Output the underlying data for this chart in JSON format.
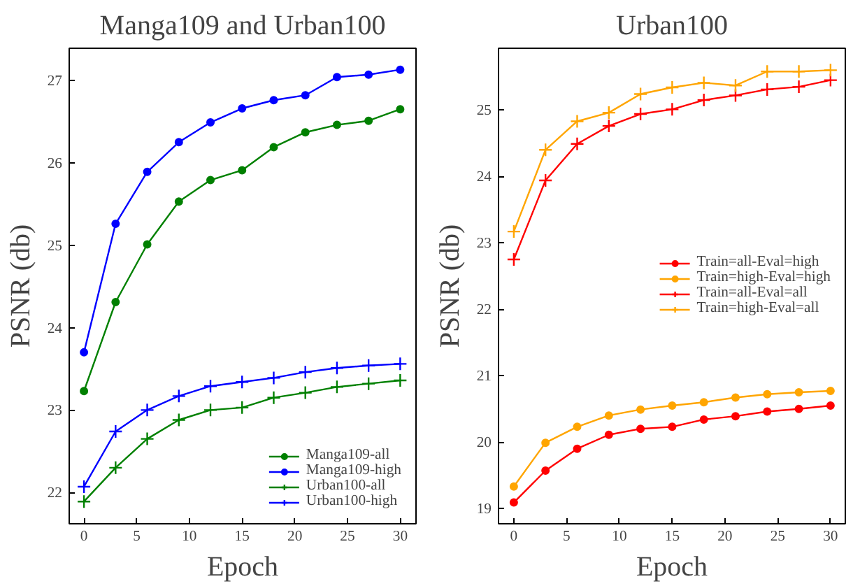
{
  "chart_data": [
    {
      "type": "line",
      "title": "Manga109 and Urban100",
      "xlabel": "Epoch",
      "ylabel": "PSNR (db)",
      "x": [
        0,
        3,
        6,
        9,
        12,
        15,
        18,
        21,
        24,
        27,
        30
      ],
      "xlim": [
        -1.4,
        31.5
      ],
      "ylim": [
        21.62,
        27.39
      ],
      "xticks": [
        0,
        5,
        10,
        15,
        20,
        25,
        30
      ],
      "yticks": [
        22,
        23,
        24,
        25,
        26,
        27
      ],
      "grid": false,
      "legend": "bottom right",
      "line_style": "solid",
      "series": [
        {
          "name": "Manga109-all",
          "color": "#008000",
          "marker": "circle",
          "values": [
            23.23,
            24.31,
            25.01,
            25.53,
            25.79,
            25.91,
            26.19,
            26.37,
            26.46,
            26.51,
            26.65
          ]
        },
        {
          "name": "Manga109-high",
          "color": "#0000ff",
          "marker": "circle",
          "values": [
            23.7,
            25.26,
            25.89,
            26.25,
            26.49,
            26.66,
            26.76,
            26.82,
            27.04,
            27.07,
            27.13
          ]
        },
        {
          "name": "Urban100-all",
          "color": "#008000",
          "marker": "cross",
          "values": [
            21.89,
            22.3,
            22.65,
            22.88,
            23.0,
            23.03,
            23.15,
            23.21,
            23.28,
            23.32,
            23.36
          ]
        },
        {
          "name": "Urban100-high",
          "color": "#0000ff",
          "marker": "cross",
          "values": [
            22.07,
            22.74,
            23.0,
            23.17,
            23.29,
            23.34,
            23.39,
            23.46,
            23.51,
            23.54,
            23.56
          ]
        }
      ]
    },
    {
      "type": "line",
      "title": "Urban100",
      "xlabel": "Epoch",
      "ylabel": "PSNR (db)",
      "x": [
        0,
        3,
        6,
        9,
        12,
        15,
        18,
        21,
        24,
        27,
        30
      ],
      "xlim": [
        -1.45,
        31.4
      ],
      "ylim": [
        18.77,
        25.93
      ],
      "xticks": [
        0,
        5,
        10,
        15,
        20,
        25,
        30
      ],
      "yticks": [
        19,
        20,
        21,
        22,
        23,
        24,
        25
      ],
      "grid": false,
      "legend": "right",
      "line_style": "solid",
      "series": [
        {
          "name": "Train=all-Eval=high",
          "color": "#ff0000",
          "marker": "circle",
          "values": [
            19.09,
            19.57,
            19.9,
            20.11,
            20.2,
            20.23,
            20.34,
            20.39,
            20.46,
            20.5,
            20.55
          ]
        },
        {
          "name": "Train=high-Eval=high",
          "color": "#ffa500",
          "marker": "circle",
          "values": [
            19.33,
            19.99,
            20.23,
            20.4,
            20.49,
            20.55,
            20.6,
            20.67,
            20.72,
            20.75,
            20.77
          ]
        },
        {
          "name": "Train=all-Eval=all",
          "color": "#ff0000",
          "marker": "cross",
          "values": [
            22.75,
            23.94,
            24.49,
            24.76,
            24.94,
            25.01,
            25.15,
            25.22,
            25.31,
            25.35,
            25.45
          ]
        },
        {
          "name": "Train=high-Eval=all",
          "color": "#ffa500",
          "marker": "cross",
          "values": [
            23.17,
            24.4,
            24.83,
            24.96,
            25.24,
            25.34,
            25.41,
            25.37,
            25.58,
            25.58,
            25.6
          ]
        }
      ]
    }
  ]
}
